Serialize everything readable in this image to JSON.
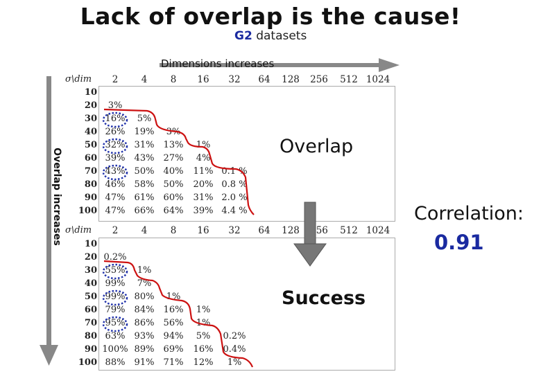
{
  "title": "Lack of overlap is the cause!",
  "subtitle_highlight": "G2",
  "subtitle_rest": " datasets",
  "dimensions_label": "Dimensions increases",
  "overlap_axis_label": "Overlap increases",
  "overlap_label": "Overlap",
  "success_label": "Success",
  "correlation_label": "Correlation:",
  "correlation_value": "0.91",
  "corner_header": "σ\\dim",
  "dims": [
    "2",
    "4",
    "8",
    "16",
    "32",
    "64",
    "128",
    "256",
    "512",
    "1024"
  ],
  "sigmas": [
    "10",
    "20",
    "30",
    "40",
    "50",
    "60",
    "70",
    "80",
    "90",
    "100"
  ],
  "colors": {
    "title_accent": "#1a2aa0",
    "curve": "#cc1111",
    "arrow": "#888888",
    "circle": "#2233aa"
  },
  "overlap_table": [
    [
      "",
      "",
      "",
      "",
      ""
    ],
    [
      "3%",
      "",
      "",
      "",
      ""
    ],
    [
      "16%",
      "5%",
      "",
      "",
      ""
    ],
    [
      "26%",
      "19%",
      "3%",
      "",
      ""
    ],
    [
      "32%",
      "31%",
      "13%",
      "1%",
      ""
    ],
    [
      "39%",
      "43%",
      "27%",
      "4%",
      ""
    ],
    [
      "43%",
      "50%",
      "40%",
      "11%",
      "0.1 %"
    ],
    [
      "46%",
      "58%",
      "50%",
      "20%",
      "0.8 %"
    ],
    [
      "47%",
      "61%",
      "60%",
      "31%",
      "2.0 %"
    ],
    [
      "47%",
      "66%",
      "64%",
      "39%",
      "4.4 %"
    ]
  ],
  "success_table": [
    [
      "",
      "",
      "",
      "",
      ""
    ],
    [
      "0.2%",
      "",
      "",
      "",
      ""
    ],
    [
      "55%",
      "1%",
      "",
      "",
      ""
    ],
    [
      "99%",
      "7%",
      "",
      "",
      ""
    ],
    [
      "99%",
      "80%",
      "1%",
      "",
      ""
    ],
    [
      "79%",
      "84%",
      "16%",
      "1%",
      ""
    ],
    [
      "95%",
      "86%",
      "56%",
      "1%",
      ""
    ],
    [
      "63%",
      "93%",
      "94%",
      "5%",
      "0.2%"
    ],
    [
      "100%",
      "89%",
      "69%",
      "16%",
      "0.4%"
    ],
    [
      "88%",
      "91%",
      "71%",
      "12%",
      "1%"
    ]
  ]
}
